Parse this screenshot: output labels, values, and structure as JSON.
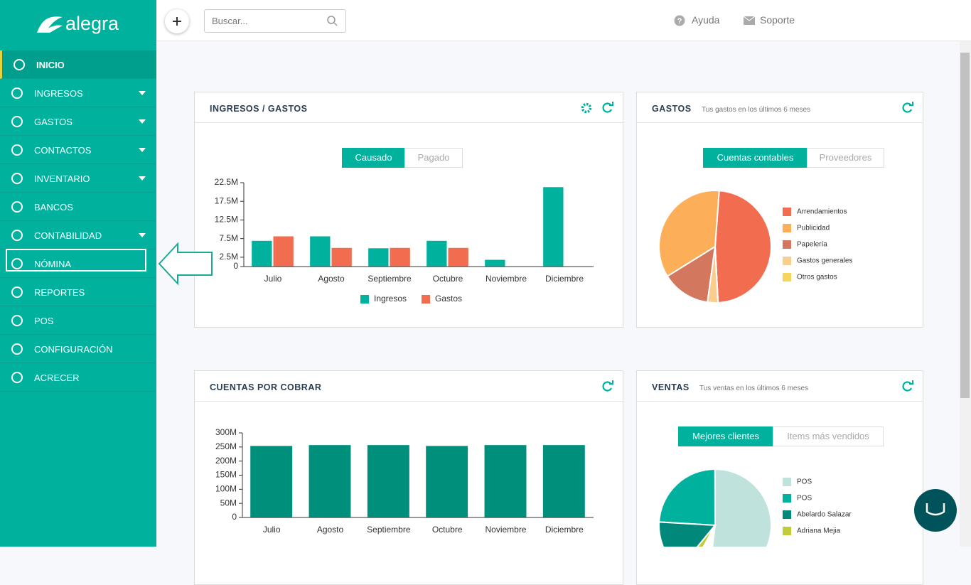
{
  "sidebar": {
    "logo": "alegra",
    "menu": [
      {
        "label": "INICIO",
        "active": true
      },
      {
        "label": "INGRESOS",
        "submenu": true
      },
      {
        "label": "GASTOS",
        "submenu": true
      },
      {
        "label": "CONTACTOS",
        "submenu": true
      },
      {
        "label": "INVENTARIO",
        "submenu": true
      },
      {
        "label": "BANCOS"
      },
      {
        "label": "CONTABILIDAD",
        "submenu": true
      },
      {
        "label": "NÓMINA",
        "highlighted": true
      },
      {
        "label": "REPORTES"
      },
      {
        "label": "POS"
      },
      {
        "label": "CONFIGURACIÓN"
      },
      {
        "label": "ACRECER"
      }
    ]
  },
  "topbar": {
    "search_placeholder": "Buscar...",
    "links": [
      "Ayuda",
      "Soporte"
    ]
  },
  "chart_data": [
    {
      "type": "bar",
      "title": "INGRESOS / GASTOS",
      "tabs": [
        "Causado",
        "Pagado"
      ],
      "categories": [
        "Julio",
        "Agosto",
        "Septiembre",
        "Octubre",
        "Noviembre",
        "Diciembre"
      ],
      "series": [
        {
          "name": "Ingresos",
          "color": "#00b19d",
          "values": [
            7000000,
            8200000,
            5000000,
            7000000,
            1900000,
            21400000
          ]
        },
        {
          "name": "Gastos",
          "color": "#f26c4f",
          "values": [
            8200000,
            5100000,
            5100000,
            5100000,
            0,
            0
          ]
        }
      ],
      "ylim": [
        0,
        22500000
      ],
      "yticks": [
        0,
        {
          "value": 2500000,
          "label": "2.5M"
        },
        {
          "value": 7500000,
          "label": "7.5M"
        },
        {
          "value": 12500000,
          "label": "12.5M"
        },
        {
          "value": 17500000,
          "label": "17.5M"
        },
        {
          "value": 22500000,
          "label": "22.5M"
        }
      ],
      "legend": "bottom"
    },
    {
      "type": "pie",
      "title": "GASTOS",
      "subtitle": "Tus gastos en los últimos 6 meses",
      "tabs": [
        "Cuentas contables",
        "Proveedores"
      ],
      "categories": [
        "Arrendamientos",
        "Publicidad",
        "Papelería",
        "Gastos generales",
        "Otros gastos"
      ],
      "values": [
        48,
        35,
        14,
        3,
        0
      ],
      "colors": [
        "#f26c4f",
        "#fcae58",
        "#d4775f",
        "#f9cd8f",
        "#f5d55b"
      ],
      "legend": "right"
    },
    {
      "type": "bar",
      "title": "CUENTAS POR COBRAR",
      "categories": [
        "Julio",
        "Agosto",
        "Septiembre",
        "Octubre",
        "Noviembre",
        "Diciembre"
      ],
      "values": [
        255000000,
        258000000,
        258000000,
        255000000,
        258000000,
        258000000
      ],
      "color": "#008f7a",
      "ylim": [
        0,
        300000000
      ],
      "yticks": [
        0,
        {
          "value": 50000000,
          "label": "50M"
        },
        {
          "value": 100000000,
          "label": "100M"
        },
        {
          "value": 150000000,
          "label": "150M"
        },
        {
          "value": 200000000,
          "label": "200M"
        },
        {
          "value": 250000000,
          "label": "250M"
        },
        {
          "value": 300000000,
          "label": "300M"
        }
      ]
    },
    {
      "type": "pie",
      "title": "VENTAS",
      "subtitle": "Tus ventas en los últimos 6 meses",
      "tabs": [
        "Mejores clientes",
        "Items más vendidos"
      ],
      "categories": [
        "POS",
        "POS",
        "Abelardo Salazar",
        "Adriana Mejia"
      ],
      "values": [
        52,
        24,
        15,
        3
      ],
      "colors": [
        "#bfe3dc",
        "#00b19d",
        "#00897b",
        "#c2cc3a"
      ],
      "legend": "right"
    }
  ]
}
